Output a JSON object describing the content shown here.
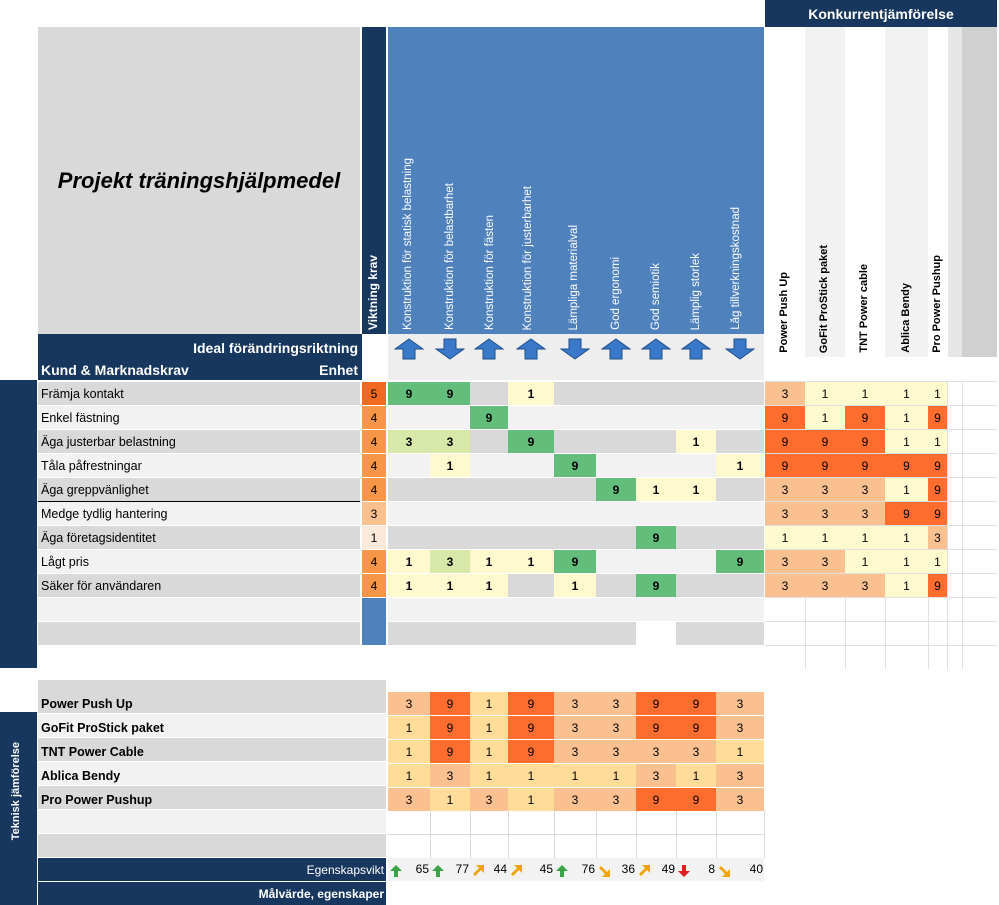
{
  "title": "Projekt träningshjälpmedel",
  "competitor_title": "Konkurrentjämförelse",
  "weight_header": "Viktning krav",
  "ideal_label": "Ideal förändringsriktning",
  "customer_label": "Kund & Marknadskrav",
  "unit_label": "Enhet",
  "technical_title": "Teknisk jämförelse",
  "importance_label": "Egenskapsvikt",
  "target_label": "Målvärde, egenskaper",
  "characteristics": [
    {
      "label": "Konstruktion för statisk belastning",
      "dir": "up"
    },
    {
      "label": "Konstruktion för belastbarhet",
      "dir": "down"
    },
    {
      "label": "Konstruktion för fästen",
      "dir": "up"
    },
    {
      "label": "Konstruktion för justerbarhet",
      "dir": "up"
    },
    {
      "label": "Lämpliga materialval",
      "dir": "down"
    },
    {
      "label": "God ergonomi",
      "dir": "up"
    },
    {
      "label": "God semiotik",
      "dir": "up"
    },
    {
      "label": "Lämplig storlek",
      "dir": "up"
    },
    {
      "label": "Låg tillverkningskostnad",
      "dir": "down"
    }
  ],
  "competitors": [
    "Power Push Up",
    "GoFit ProStick paket",
    "TNT Power cable",
    "Ablica Bendy",
    "Pro Power Pushup"
  ],
  "requirements": [
    {
      "label": "Främja kontakt",
      "weight": "5",
      "rel": [
        "9",
        "9",
        "",
        "1",
        "",
        "",
        "",
        "",
        ""
      ],
      "comp": [
        "3",
        "1",
        "1",
        "1",
        "1"
      ]
    },
    {
      "label": "Enkel fästning",
      "weight": "4",
      "rel": [
        "",
        "",
        "9",
        "",
        "",
        "",
        "",
        "",
        ""
      ],
      "comp": [
        "9",
        "1",
        "9",
        "1",
        "9"
      ]
    },
    {
      "label": "Äga justerbar belastning",
      "weight": "4",
      "rel": [
        "3",
        "3",
        "",
        "9",
        "",
        "",
        "",
        "1",
        ""
      ],
      "comp": [
        "9",
        "9",
        "9",
        "1",
        "1"
      ]
    },
    {
      "label": "Tåla påfrestningar",
      "weight": "4",
      "rel": [
        "",
        "1",
        "",
        "",
        "9",
        "",
        "",
        "",
        "1"
      ],
      "comp": [
        "9",
        "9",
        "9",
        "9",
        "9"
      ]
    },
    {
      "label": "Äga greppvänlighet",
      "weight": "4",
      "rel": [
        "",
        "",
        "",
        "",
        "",
        "9",
        "1",
        "1",
        ""
      ],
      "comp": [
        "3",
        "3",
        "3",
        "1",
        "9"
      ]
    },
    {
      "label": "Medge tydlig hantering",
      "weight": "3",
      "rel": [
        "",
        "",
        "",
        "",
        "",
        "",
        "",
        "",
        ""
      ],
      "comp": [
        "3",
        "3",
        "3",
        "9",
        "9"
      ]
    },
    {
      "label": "Äga företagsidentitet",
      "weight": "1",
      "rel": [
        "",
        "",
        "",
        "",
        "",
        "",
        "9",
        "",
        ""
      ],
      "comp": [
        "1",
        "1",
        "1",
        "1",
        "3"
      ]
    },
    {
      "label": "Lågt pris",
      "weight": "4",
      "rel": [
        "1",
        "3",
        "1",
        "1",
        "9",
        "",
        "",
        "",
        "9"
      ],
      "comp": [
        "3",
        "3",
        "1",
        "1",
        "1"
      ]
    },
    {
      "label": "Säker för användaren",
      "weight": "4",
      "rel": [
        "1",
        "1",
        "1",
        "",
        "1",
        "",
        "9",
        "",
        ""
      ],
      "comp": [
        "3",
        "3",
        "3",
        "1",
        "9"
      ]
    }
  ],
  "tech_rows": [
    {
      "label": "Power Push Up",
      "vals": [
        "3",
        "9",
        "1",
        "9",
        "3",
        "3",
        "9",
        "9",
        "3"
      ]
    },
    {
      "label": "GoFit ProStick paket",
      "vals": [
        "1",
        "9",
        "1",
        "9",
        "3",
        "3",
        "9",
        "9",
        "3"
      ]
    },
    {
      "label": "TNT Power Cable",
      "vals": [
        "1",
        "9",
        "1",
        "9",
        "3",
        "3",
        "3",
        "3",
        "1"
      ]
    },
    {
      "label": "Ablica Bendy",
      "vals": [
        "1",
        "3",
        "1",
        "1",
        "1",
        "1",
        "3",
        "1",
        "3"
      ]
    },
    {
      "label": "Pro Power Pushup",
      "vals": [
        "3",
        "1",
        "3",
        "1",
        "3",
        "3",
        "9",
        "9",
        "3"
      ]
    }
  ],
  "importance": [
    {
      "value": "65",
      "trend": "up"
    },
    {
      "value": "77",
      "trend": "up"
    },
    {
      "value": "44",
      "trend": "up-right"
    },
    {
      "value": "45",
      "trend": "up-right"
    },
    {
      "value": "76",
      "trend": "up"
    },
    {
      "value": "36",
      "trend": "down-right"
    },
    {
      "value": "49",
      "trend": "up-right"
    },
    {
      "value": "8",
      "trend": "down"
    },
    {
      "value": "40",
      "trend": "down-right"
    }
  ],
  "colors": {
    "navy": "#17375e",
    "blue": "#4f81bd",
    "green": "#63be7b",
    "lightgreen": "#d8e8a8",
    "pale": "#fffacd",
    "orange": "#fd6d2d",
    "peach": "#fac090",
    "lightorange": "#ffdd99",
    "weight": "#f79646"
  }
}
